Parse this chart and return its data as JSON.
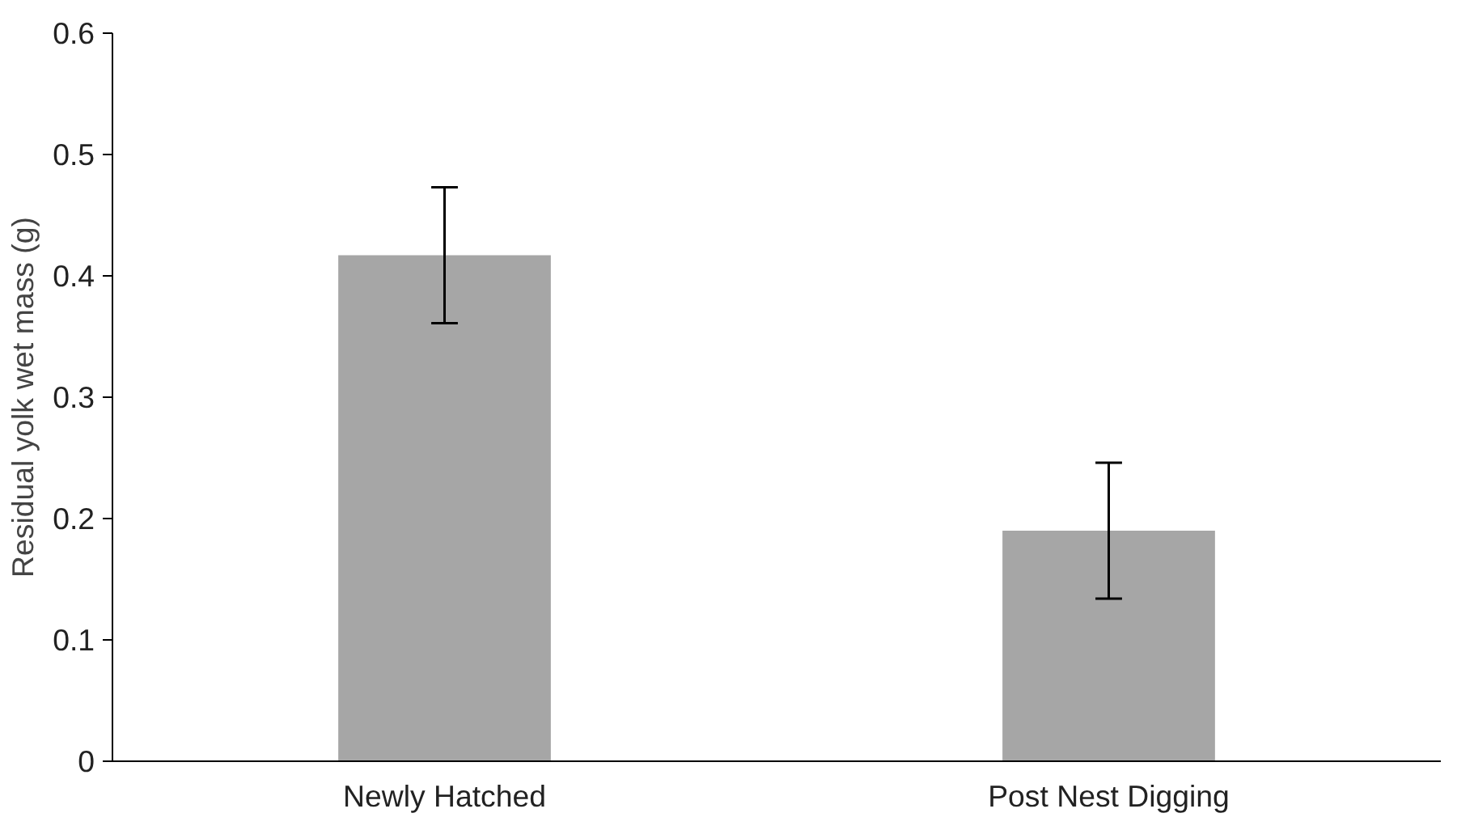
{
  "chart_data": {
    "type": "bar",
    "ylabel": "Residual yolk wet mass (g)",
    "categories": [
      "Newly Hatched",
      "Post Nest Digging"
    ],
    "values": [
      0.417,
      0.19
    ],
    "errors": [
      0.056,
      0.056
    ],
    "color": "#a6a6a6",
    "ylim": [
      0,
      0.6
    ],
    "yticks": [
      0,
      0.1,
      0.2,
      0.3,
      0.4,
      0.5,
      0.6
    ],
    "grid": false
  }
}
